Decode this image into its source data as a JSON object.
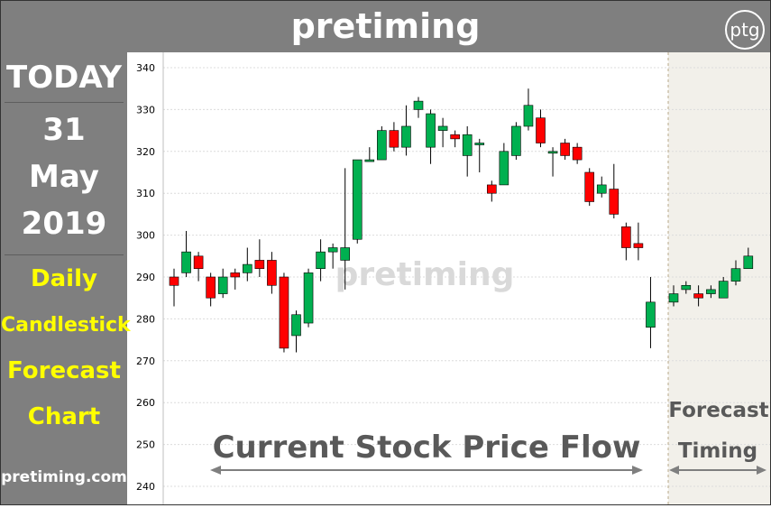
{
  "header": {
    "title": "pretiming",
    "logo": "ptg"
  },
  "sidebar": {
    "today_label": "TODAY",
    "date_day": "31",
    "date_month": "May",
    "date_year": "2019",
    "desc_line1": "Daily",
    "desc_line2": "Candlestick",
    "desc_line3": "Forecast",
    "desc_line4": "Chart",
    "site": "pretiming.com"
  },
  "colors": {
    "up": "#00b050",
    "down": "#ff0000",
    "panel": "#7f7f7f",
    "forecast_bg": "#f2f0ea",
    "accent_text": "#ffff00"
  },
  "chart_data": {
    "type": "candlestick",
    "ylim": [
      240,
      340
    ],
    "yticks": [
      240,
      250,
      260,
      270,
      280,
      290,
      300,
      310,
      320,
      330,
      340
    ],
    "watermark": "pretiming",
    "current_label": "Current Stock Price Flow",
    "forecast_label_1": "Forecast",
    "forecast_label_2": "Timing",
    "history": [
      {
        "open": 290,
        "close": 288,
        "high": 292,
        "low": 283
      },
      {
        "open": 291,
        "close": 296,
        "high": 301,
        "low": 290
      },
      {
        "open": 295,
        "close": 292,
        "high": 296,
        "low": 289
      },
      {
        "open": 290,
        "close": 285,
        "high": 291,
        "low": 283
      },
      {
        "open": 286,
        "close": 290,
        "high": 292,
        "low": 285
      },
      {
        "open": 291,
        "close": 290,
        "high": 292,
        "low": 287
      },
      {
        "open": 291,
        "close": 293,
        "high": 297,
        "low": 289
      },
      {
        "open": 294,
        "close": 292,
        "high": 299,
        "low": 290
      },
      {
        "open": 294,
        "close": 288,
        "high": 296,
        "low": 286
      },
      {
        "open": 290,
        "close": 273,
        "high": 291,
        "low": 272
      },
      {
        "open": 276,
        "close": 281,
        "high": 282,
        "low": 272
      },
      {
        "open": 279,
        "close": 291,
        "high": 292,
        "low": 278
      },
      {
        "open": 292,
        "close": 296,
        "high": 299,
        "low": 289
      },
      {
        "open": 296,
        "close": 297,
        "high": 298,
        "low": 292
      },
      {
        "open": 294,
        "close": 297,
        "high": 316,
        "low": 287
      },
      {
        "open": 299,
        "close": 318,
        "high": 318,
        "low": 298
      },
      {
        "open": 318,
        "close": 318,
        "high": 321,
        "low": 318
      },
      {
        "open": 318,
        "close": 325,
        "high": 326,
        "low": 318
      },
      {
        "open": 325,
        "close": 321,
        "high": 327,
        "low": 320
      },
      {
        "open": 321,
        "close": 326,
        "high": 331,
        "low": 319
      },
      {
        "open": 330,
        "close": 332,
        "high": 333,
        "low": 328
      },
      {
        "open": 321,
        "close": 329,
        "high": 330,
        "low": 317
      },
      {
        "open": 325,
        "close": 326,
        "high": 328,
        "low": 321
      },
      {
        "open": 324,
        "close": 323,
        "high": 325,
        "low": 321
      },
      {
        "open": 319,
        "close": 324,
        "high": 326,
        "low": 314
      },
      {
        "open": 322,
        "close": 322,
        "high": 323,
        "low": 315
      },
      {
        "open": 312,
        "close": 310,
        "high": 313,
        "low": 308
      },
      {
        "open": 312,
        "close": 320,
        "high": 322,
        "low": 312
      },
      {
        "open": 319,
        "close": 326,
        "high": 327,
        "low": 318
      },
      {
        "open": 326,
        "close": 331,
        "high": 335,
        "low": 325
      },
      {
        "open": 328,
        "close": 322,
        "high": 330,
        "low": 321
      },
      {
        "open": 320,
        "close": 320,
        "high": 321,
        "low": 314
      },
      {
        "open": 322,
        "close": 319,
        "high": 323,
        "low": 318
      },
      {
        "open": 321,
        "close": 318,
        "high": 322,
        "low": 317
      },
      {
        "open": 315,
        "close": 308,
        "high": 316,
        "low": 307
      },
      {
        "open": 310,
        "close": 312,
        "high": 314,
        "low": 309
      },
      {
        "open": 311,
        "close": 305,
        "high": 317,
        "low": 304
      },
      {
        "open": 302,
        "close": 297,
        "high": 303,
        "low": 294
      },
      {
        "open": 298,
        "close": 297,
        "high": 303,
        "low": 294
      },
      {
        "open": 278,
        "close": 284,
        "high": 290,
        "low": 273
      }
    ],
    "forecast": [
      {
        "open": 284,
        "close": 286,
        "high": 288,
        "low": 283
      },
      {
        "open": 287,
        "close": 288,
        "high": 289,
        "low": 286
      },
      {
        "open": 286,
        "close": 285,
        "high": 288,
        "low": 283
      },
      {
        "open": 286,
        "close": 287,
        "high": 288,
        "low": 285
      },
      {
        "open": 285,
        "close": 289,
        "high": 290,
        "low": 285
      },
      {
        "open": 289,
        "close": 292,
        "high": 294,
        "low": 288
      },
      {
        "open": 292,
        "close": 295,
        "high": 297,
        "low": 292
      }
    ]
  }
}
